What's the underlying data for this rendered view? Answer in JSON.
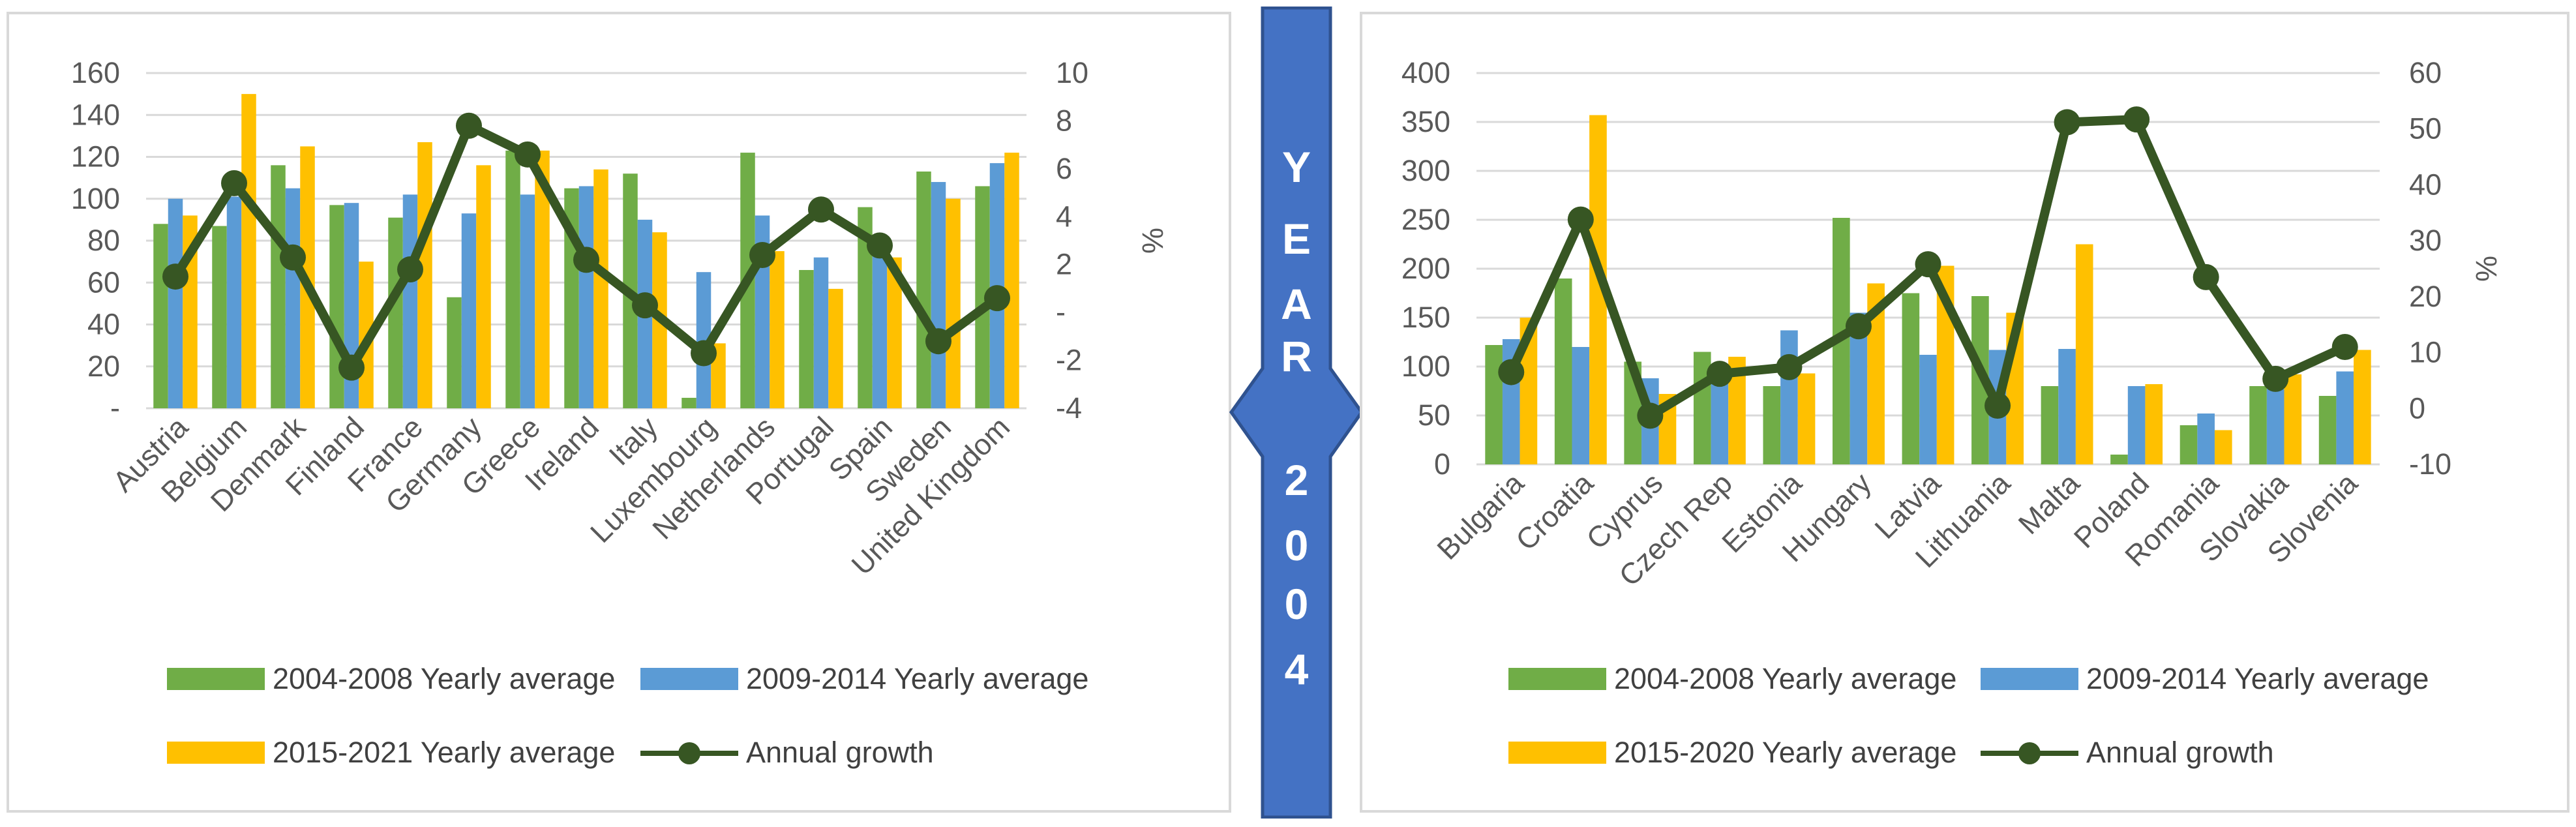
{
  "colors": {
    "bar1": "#70ad47",
    "bar2": "#5b9bd5",
    "bar3": "#ffc000",
    "line": "#375623",
    "grid": "#d9d9d9",
    "axis_text": "#595959",
    "arrow_fill": "#4472c4",
    "arrow_stroke": "#2f528f"
  },
  "center_label": {
    "letters": [
      "Y",
      "E",
      "A",
      "R",
      "2",
      "0",
      "0",
      "4"
    ]
  },
  "chart_data": [
    {
      "type": "bar",
      "categories": [
        "Austria",
        "Belgium",
        "Denmark",
        "Finland",
        "France",
        "Germany",
        "Greece",
        "Ireland",
        "Italy",
        "Luxembourg",
        "Netherlands",
        "Portugal",
        "Spain",
        "Sweden",
        "United Kingdom"
      ],
      "series": [
        {
          "name": "2004-2008 Yearly average",
          "kind": "bar",
          "axis": "left",
          "values": [
            88,
            87,
            116,
            97,
            91,
            53,
            123,
            105,
            112,
            5,
            122,
            66,
            96,
            113,
            106
          ]
        },
        {
          "name": "2009-2014 Yearly average",
          "kind": "bar",
          "axis": "left",
          "values": [
            100,
            101,
            105,
            98,
            102,
            93,
            102,
            106,
            90,
            65,
            92,
            72,
            82,
            108,
            117
          ]
        },
        {
          "name": "2015-2021 Yearly average",
          "kind": "bar",
          "axis": "left",
          "values": [
            92,
            150,
            125,
            70,
            127,
            116,
            123,
            114,
            84,
            31,
            75,
            57,
            72,
            100,
            122
          ]
        },
        {
          "name": "Annual growth",
          "kind": "line",
          "axis": "right",
          "values": [
            1.5,
            5.4,
            2.3,
            -2.3,
            1.8,
            7.8,
            6.6,
            2.2,
            0.3,
            -1.7,
            2.4,
            4.3,
            2.8,
            -1.2,
            0.6
          ]
        }
      ],
      "y_left": {
        "min": 0,
        "max": 160,
        "ticks": [
          "-",
          "20",
          "40",
          "60",
          "80",
          "100",
          "120",
          "140",
          "160"
        ]
      },
      "y_right": {
        "min": -4,
        "max": 10,
        "ticks": [
          "-4",
          "-2",
          "-",
          "2",
          "4",
          "6",
          "8",
          "10"
        ],
        "label": "%"
      },
      "legend": {
        "row1": [
          "2004-2008 Yearly average",
          "2009-2014 Yearly average"
        ],
        "row2": [
          "2015-2021 Yearly average",
          "Annual growth"
        ]
      },
      "grid": true
    },
    {
      "type": "bar",
      "categories": [
        "Bulgaria",
        "Croatia",
        "Cyprus",
        "Czech Rep",
        "Estonia",
        "Hungary",
        "Latvia",
        "Lithuania",
        "Malta",
        "Poland",
        "Romania",
        "Slovakia",
        "Slovenia"
      ],
      "series": [
        {
          "name": "2004-2008 Yearly average",
          "kind": "bar",
          "axis": "left",
          "values": [
            122,
            190,
            105,
            115,
            80,
            252,
            175,
            172,
            80,
            10,
            40,
            80,
            70
          ]
        },
        {
          "name": "2009-2014 Yearly average",
          "kind": "bar",
          "axis": "left",
          "values": [
            128,
            120,
            88,
            97,
            137,
            155,
            112,
            117,
            118,
            80,
            52,
            77,
            95
          ]
        },
        {
          "name": "2015-2020 Yearly average",
          "kind": "bar",
          "axis": "left",
          "values": [
            150,
            357,
            72,
            110,
            93,
            185,
            203,
            155,
            225,
            82,
            35,
            92,
            117
          ]
        },
        {
          "name": "Annual growth",
          "kind": "line",
          "axis": "right",
          "values": [
            6.5,
            33.8,
            -1.3,
            6.2,
            7.4,
            14.7,
            25.8,
            0.5,
            51.2,
            51.7,
            23.5,
            5.3,
            11.0
          ]
        }
      ],
      "y_left": {
        "min": 0,
        "max": 400,
        "ticks": [
          "0",
          "50",
          "100",
          "150",
          "200",
          "250",
          "300",
          "350",
          "400"
        ]
      },
      "y_right": {
        "min": -10,
        "max": 60,
        "ticks": [
          "-10",
          "0",
          "10",
          "20",
          "30",
          "40",
          "50",
          "60"
        ],
        "label": "%"
      },
      "legend": {
        "row1": [
          "2004-2008 Yearly average",
          "2009-2014 Yearly average"
        ],
        "row2": [
          "2015-2020 Yearly average",
          "Annual growth"
        ]
      },
      "grid": true
    }
  ]
}
